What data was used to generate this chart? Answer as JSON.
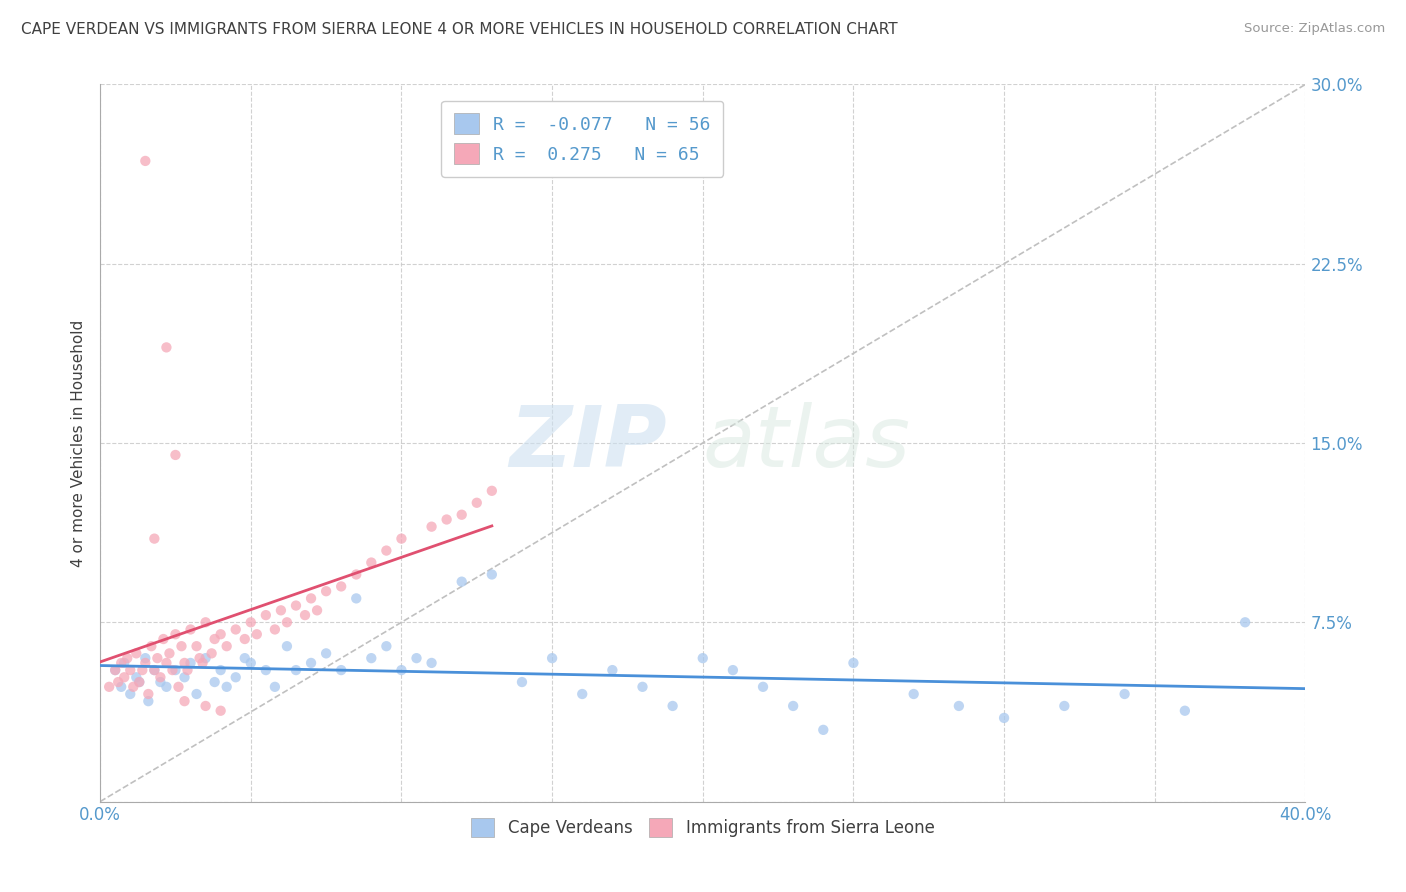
{
  "title": "CAPE VERDEAN VS IMMIGRANTS FROM SIERRA LEONE 4 OR MORE VEHICLES IN HOUSEHOLD CORRELATION CHART",
  "source": "Source: ZipAtlas.com",
  "ylabel": "4 or more Vehicles in Household",
  "xlim": [
    0.0,
    0.4
  ],
  "ylim": [
    0.0,
    0.3
  ],
  "xticks": [
    0.0,
    0.05,
    0.1,
    0.15,
    0.2,
    0.25,
    0.3,
    0.35,
    0.4
  ],
  "yticks": [
    0.0,
    0.075,
    0.15,
    0.225,
    0.3
  ],
  "blue_R": -0.077,
  "blue_N": 56,
  "pink_R": 0.275,
  "pink_N": 65,
  "blue_color": "#a8c8ee",
  "pink_color": "#f5a8b8",
  "blue_line_color": "#4a90d9",
  "pink_line_color": "#e05070",
  "blue_label": "Cape Verdeans",
  "pink_label": "Immigrants from Sierra Leone",
  "watermark_zip": "ZIP",
  "watermark_atlas": "atlas",
  "background_color": "#ffffff",
  "grid_color": "#cccccc",
  "title_color": "#404040",
  "legend_text_color": "#5599cc",
  "tick_label_color": "#5599cc",
  "blue_x": [
    0.005,
    0.007,
    0.008,
    0.01,
    0.012,
    0.013,
    0.015,
    0.016,
    0.018,
    0.02,
    0.022,
    0.025,
    0.028,
    0.03,
    0.032,
    0.035,
    0.038,
    0.04,
    0.042,
    0.045,
    0.048,
    0.05,
    0.055,
    0.058,
    0.062,
    0.065,
    0.07,
    0.075,
    0.08,
    0.085,
    0.09,
    0.095,
    0.1,
    0.105,
    0.11,
    0.12,
    0.13,
    0.14,
    0.15,
    0.16,
    0.17,
    0.18,
    0.19,
    0.2,
    0.21,
    0.22,
    0.23,
    0.24,
    0.25,
    0.27,
    0.285,
    0.3,
    0.32,
    0.34,
    0.36,
    0.38
  ],
  "blue_y": [
    0.055,
    0.048,
    0.058,
    0.045,
    0.052,
    0.05,
    0.06,
    0.042,
    0.055,
    0.05,
    0.048,
    0.055,
    0.052,
    0.058,
    0.045,
    0.06,
    0.05,
    0.055,
    0.048,
    0.052,
    0.06,
    0.058,
    0.055,
    0.048,
    0.065,
    0.055,
    0.058,
    0.062,
    0.055,
    0.085,
    0.06,
    0.065,
    0.055,
    0.06,
    0.058,
    0.092,
    0.095,
    0.05,
    0.06,
    0.045,
    0.055,
    0.048,
    0.04,
    0.06,
    0.055,
    0.048,
    0.04,
    0.03,
    0.058,
    0.045,
    0.04,
    0.035,
    0.04,
    0.045,
    0.038,
    0.075
  ],
  "pink_x": [
    0.003,
    0.005,
    0.006,
    0.007,
    0.008,
    0.009,
    0.01,
    0.011,
    0.012,
    0.013,
    0.014,
    0.015,
    0.016,
    0.017,
    0.018,
    0.019,
    0.02,
    0.021,
    0.022,
    0.023,
    0.024,
    0.025,
    0.026,
    0.027,
    0.028,
    0.029,
    0.03,
    0.032,
    0.033,
    0.034,
    0.035,
    0.037,
    0.038,
    0.04,
    0.042,
    0.045,
    0.048,
    0.05,
    0.052,
    0.055,
    0.058,
    0.06,
    0.062,
    0.065,
    0.068,
    0.07,
    0.072,
    0.075,
    0.08,
    0.085,
    0.09,
    0.095,
    0.1,
    0.11,
    0.115,
    0.12,
    0.125,
    0.13,
    0.022,
    0.025,
    0.028,
    0.015,
    0.018,
    0.035,
    0.04
  ],
  "pink_y": [
    0.048,
    0.055,
    0.05,
    0.058,
    0.052,
    0.06,
    0.055,
    0.048,
    0.062,
    0.05,
    0.055,
    0.058,
    0.045,
    0.065,
    0.055,
    0.06,
    0.052,
    0.068,
    0.058,
    0.062,
    0.055,
    0.07,
    0.048,
    0.065,
    0.058,
    0.055,
    0.072,
    0.065,
    0.06,
    0.058,
    0.075,
    0.062,
    0.068,
    0.07,
    0.065,
    0.072,
    0.068,
    0.075,
    0.07,
    0.078,
    0.072,
    0.08,
    0.075,
    0.082,
    0.078,
    0.085,
    0.08,
    0.088,
    0.09,
    0.095,
    0.1,
    0.105,
    0.11,
    0.115,
    0.118,
    0.12,
    0.125,
    0.13,
    0.19,
    0.145,
    0.042,
    0.268,
    0.11,
    0.04,
    0.038
  ]
}
